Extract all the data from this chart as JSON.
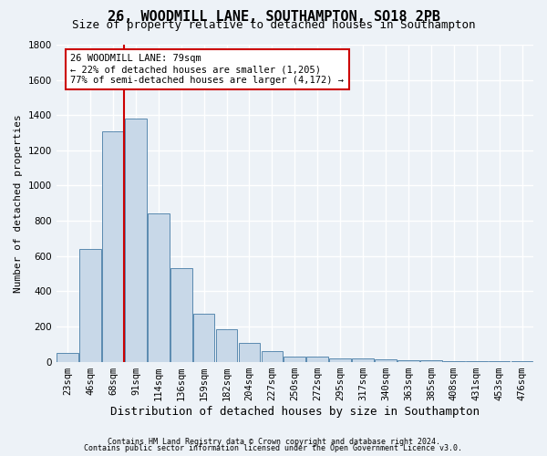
{
  "title_line1": "26, WOODMILL LANE, SOUTHAMPTON, SO18 2PB",
  "title_line2": "Size of property relative to detached houses in Southampton",
  "xlabel": "Distribution of detached houses by size in Southampton",
  "ylabel": "Number of detached properties",
  "categories": [
    "23sqm",
    "46sqm",
    "68sqm",
    "91sqm",
    "114sqm",
    "136sqm",
    "159sqm",
    "182sqm",
    "204sqm",
    "227sqm",
    "250sqm",
    "272sqm",
    "295sqm",
    "317sqm",
    "340sqm",
    "363sqm",
    "385sqm",
    "408sqm",
    "431sqm",
    "453sqm",
    "476sqm"
  ],
  "values": [
    50,
    640,
    1310,
    1380,
    840,
    530,
    270,
    185,
    105,
    60,
    30,
    30,
    20,
    20,
    15,
    10,
    8,
    5,
    5,
    3,
    5
  ],
  "bar_color": "#c8d8e8",
  "bar_edge_color": "#5a8ab0",
  "marker_label": "26 WOODMILL LANE: 79sqm",
  "pct_smaller": "22% of detached houses are smaller (1,205)",
  "pct_larger": "77% of semi-detached houses are larger (4,172)",
  "annotation_box_color": "#ffffff",
  "annotation_box_edge": "#cc0000",
  "vline_color": "#cc0000",
  "vline_x_index": 2.48,
  "ylim": [
    0,
    1800
  ],
  "yticks": [
    0,
    200,
    400,
    600,
    800,
    1000,
    1200,
    1400,
    1600,
    1800
  ],
  "footer1": "Contains HM Land Registry data © Crown copyright and database right 2024.",
  "footer2": "Contains public sector information licensed under the Open Government Licence v3.0.",
  "bg_color": "#edf2f7",
  "grid_color": "#ffffff",
  "title1_fontsize": 11,
  "title2_fontsize": 9,
  "xlabel_fontsize": 9,
  "ylabel_fontsize": 8,
  "tick_fontsize": 7.5,
  "ann_fontsize": 7.5
}
